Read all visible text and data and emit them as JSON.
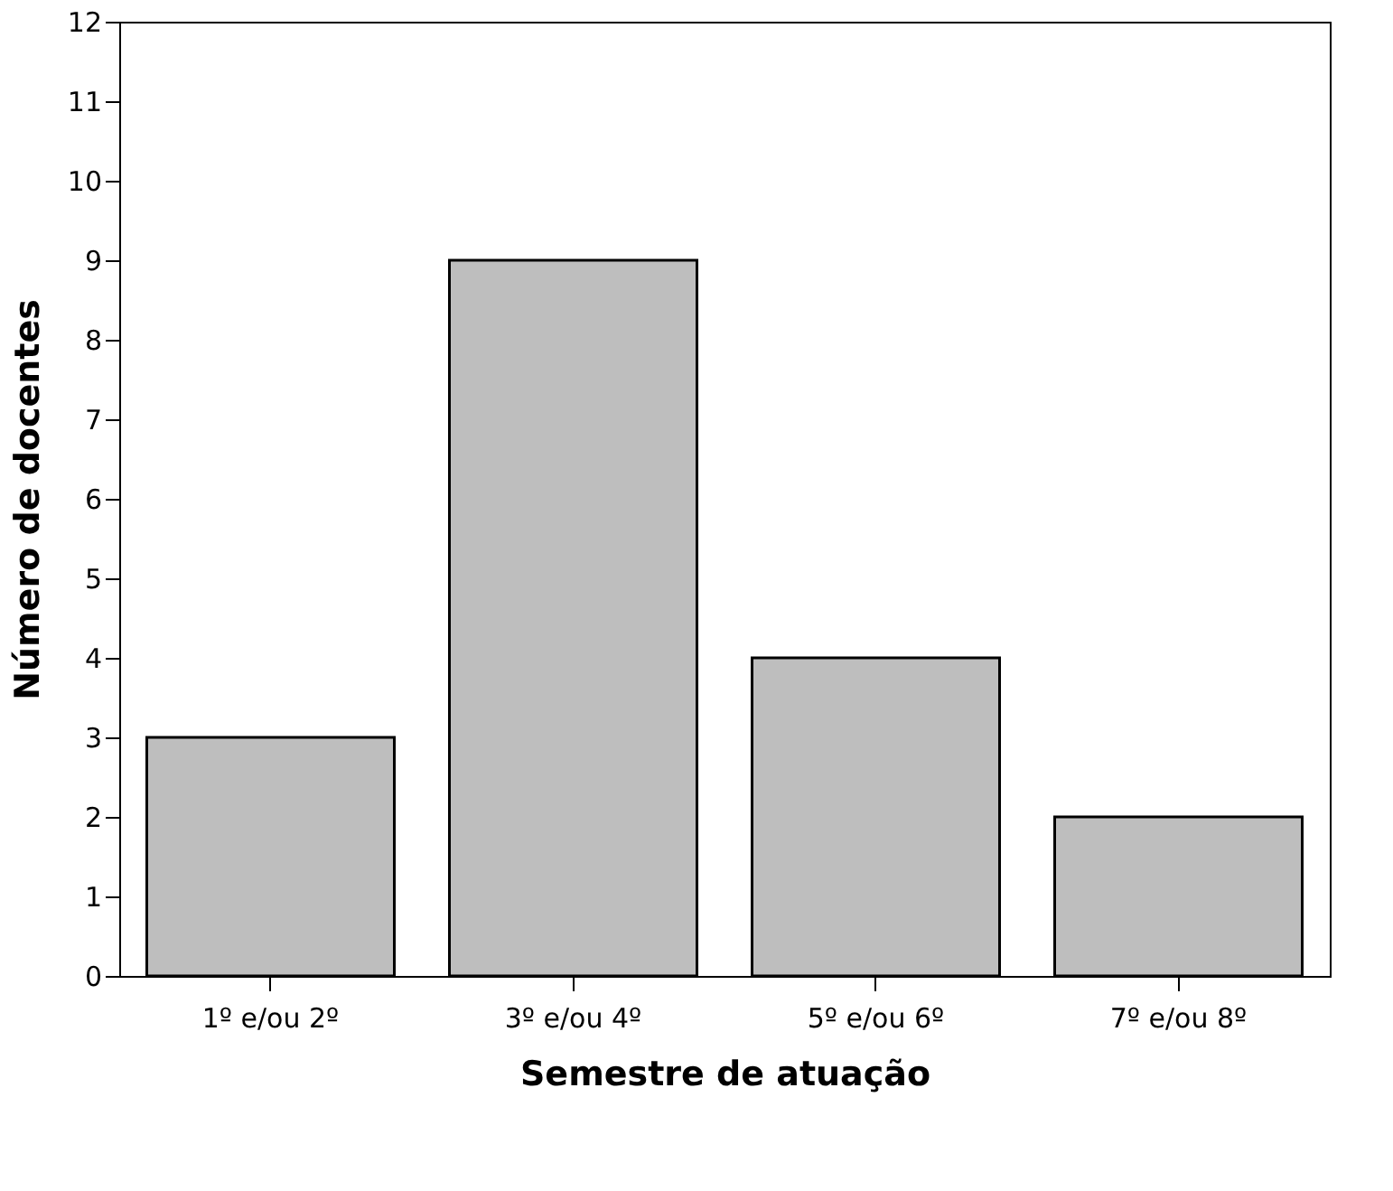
{
  "chart_data": {
    "type": "bar",
    "xlabel": "Semestre de atuação",
    "ylabel": "Número de docentes",
    "categories": [
      "1º e/ou 2º",
      "3º e/ou 4º",
      "5º e/ou 6º",
      "7º e/ou 8º"
    ],
    "values": [
      3,
      9,
      4,
      2
    ],
    "color": "#bebebe",
    "ylim": [
      0,
      12
    ],
    "yticks": [
      0,
      1,
      2,
      3,
      4,
      5,
      6,
      7,
      8,
      9,
      10,
      11,
      12
    ],
    "grid": false
  }
}
